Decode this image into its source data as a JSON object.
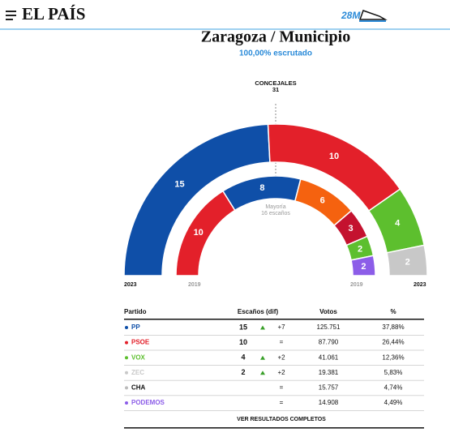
{
  "header": {
    "logo": "EL PAÍS",
    "badge": "28M"
  },
  "title": "Zaragoza / Municipio",
  "subtitle": "100,00% escrutado",
  "chart": {
    "label": "CONCEJALES",
    "total": 31,
    "majority_label": "Mayoría",
    "majority_seats": "16 escaños",
    "outer_year": "2023",
    "inner_year": "2019",
    "inner": {
      "values": [
        10,
        8,
        6,
        3,
        2,
        2
      ],
      "colors": [
        "#e3202a",
        "#0f4fa8",
        "#f5620f",
        "#c4122f",
        "#5dbf2e",
        "#8c5de8"
      ]
    }
  },
  "table": {
    "columns": [
      "Partido",
      "Escaños (dif)",
      "Votos",
      "%"
    ],
    "rows": [
      {
        "party": "PP",
        "color": "#0f4fa8",
        "seats": 15,
        "arrow": true,
        "diff": "+7",
        "votes": "125.751",
        "pct": "37,88%"
      },
      {
        "party": "PSOE",
        "color": "#e3202a",
        "seats": 10,
        "arrow": false,
        "diff": "=",
        "votes": "87.790",
        "pct": "26,44%"
      },
      {
        "party": "VOX",
        "color": "#5dbf2e",
        "seats": 4,
        "arrow": true,
        "diff": "+2",
        "votes": "41.061",
        "pct": "12,36%"
      },
      {
        "party": "ZEC",
        "color": "#c8c8c8",
        "seats": 2,
        "arrow": true,
        "diff": "+2",
        "votes": "19.381",
        "pct": "5,83%"
      },
      {
        "party": "CHA",
        "color": "#bbbbbb",
        "seats": null,
        "arrow": false,
        "diff": "=",
        "votes": "15.757",
        "pct": "4,74%"
      },
      {
        "party": "PODEMOS",
        "color": "#8c5de8",
        "seats": null,
        "arrow": false,
        "diff": "=",
        "votes": "14.908",
        "pct": "4,49%"
      }
    ],
    "footer": "VER RESULTADOS COMPLETOS"
  }
}
